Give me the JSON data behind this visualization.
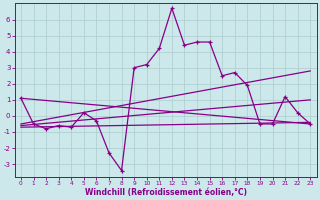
{
  "xlabel": "Windchill (Refroidissement éolien,°C)",
  "background_color": "#cce8ea",
  "grid_color": "#aacccc",
  "line_color": "#880088",
  "x_ticks": [
    0,
    1,
    2,
    3,
    4,
    5,
    6,
    7,
    8,
    9,
    10,
    11,
    12,
    13,
    14,
    15,
    16,
    17,
    18,
    19,
    20,
    21,
    22,
    23
  ],
  "y_ticks": [
    -3,
    -2,
    -1,
    0,
    1,
    2,
    3,
    4,
    5,
    6
  ],
  "xlim": [
    -0.5,
    23.5
  ],
  "ylim": [
    -3.8,
    7.0
  ],
  "series1_x": [
    0,
    1,
    2,
    3,
    4,
    5,
    6,
    7,
    8,
    9,
    10,
    11,
    12,
    13,
    14,
    15,
    16,
    17,
    18,
    19,
    20,
    21,
    22,
    23
  ],
  "series1_y": [
    1.1,
    -0.5,
    -0.8,
    -0.6,
    -0.7,
    0.2,
    -0.3,
    -2.3,
    -3.4,
    3.0,
    3.2,
    4.2,
    6.7,
    4.4,
    4.6,
    4.6,
    2.5,
    2.7,
    1.9,
    -0.5,
    -0.5,
    1.2,
    0.2,
    -0.5
  ],
  "trend1_x": [
    0,
    23
  ],
  "trend1_y": [
    1.1,
    -0.5
  ],
  "trend2_x": [
    0,
    23
  ],
  "trend2_y": [
    -0.5,
    2.8
  ],
  "trend3_x": [
    0,
    23
  ],
  "trend3_y": [
    -0.6,
    1.0
  ],
  "trend4_x": [
    0,
    23
  ],
  "trend4_y": [
    -0.7,
    -0.4
  ]
}
